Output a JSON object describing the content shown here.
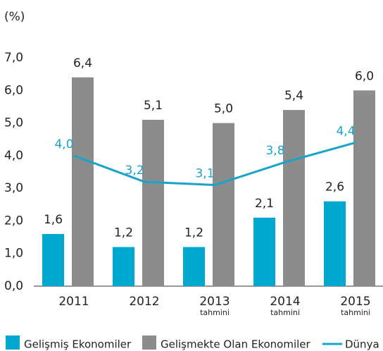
{
  "chart_data": {
    "type": "bar_line",
    "ylabel": "(%)",
    "categories": [
      "2011",
      "2012",
      "2013",
      "2014",
      "2015"
    ],
    "category_notes": [
      null,
      null,
      "tahmini",
      "tahmini",
      "tahmini"
    ],
    "series": [
      {
        "name": "Gelişmiş Ekonomiler",
        "type": "bar",
        "color": "#00a7cf",
        "values": [
          1.6,
          1.2,
          1.2,
          2.1,
          2.6
        ],
        "value_labels": [
          "1,6",
          "1,2",
          "1,2",
          "2,1",
          "2,6"
        ]
      },
      {
        "name": "Gelişmekte Olan Ekonomiler",
        "type": "bar",
        "color": "#8c8c8c",
        "values": [
          6.4,
          5.1,
          5.0,
          5.4,
          6.0
        ],
        "value_labels": [
          "6,4",
          "5,1",
          "5,0",
          "5,4",
          "6,0"
        ]
      },
      {
        "name": "Dünya",
        "type": "line",
        "color": "#1aa3c8",
        "values": [
          4.0,
          3.2,
          3.1,
          3.8,
          4.4
        ],
        "value_labels": [
          "4,0",
          "3,2",
          "3,1",
          "3,8",
          "4,4"
        ]
      }
    ],
    "ylim": [
      0,
      7
    ],
    "yticks": [
      {
        "value": 0,
        "label": "0,0"
      },
      {
        "value": 1,
        "label": "1,0"
      },
      {
        "value": 2,
        "label": "2,0"
      },
      {
        "value": 3,
        "label": "3,0"
      },
      {
        "value": 4,
        "label": "4,0"
      },
      {
        "value": 5,
        "label": "5,0"
      },
      {
        "value": 6,
        "label": "6,0"
      },
      {
        "value": 7,
        "label": "7,0"
      }
    ],
    "legend": "bottom"
  }
}
